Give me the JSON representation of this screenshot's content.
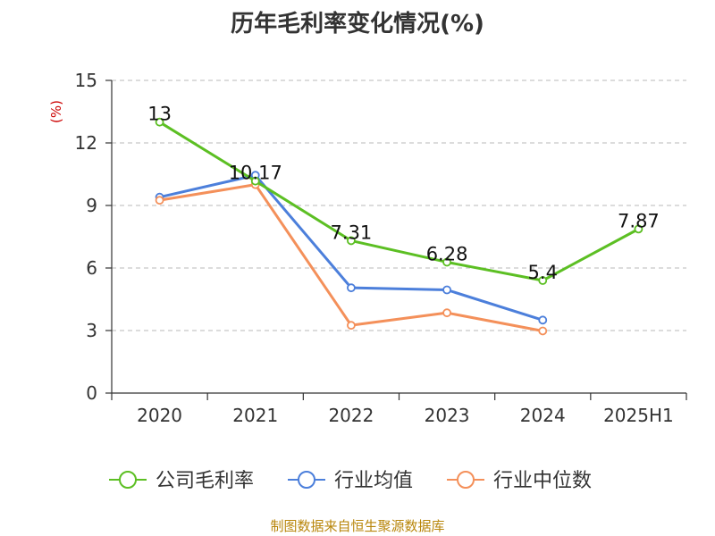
{
  "title": "历年毛利率变化情况(%)",
  "source": "制图数据来自恒生聚源数据库",
  "colors": {
    "company": "#5cbf23",
    "industry_avg": "#4c7fdb",
    "industry_median": "#f4905a",
    "unit_label": "#cc0000"
  },
  "chart_data": {
    "type": "line",
    "title": "历年毛利率变化情况(%)",
    "ylabel": "(%)",
    "ylim": [
      0,
      15
    ],
    "y_ticks": [
      0,
      3,
      6,
      9,
      12,
      15
    ],
    "grid": true,
    "legend_position": "bottom",
    "categories": [
      "2020",
      "2021",
      "2022",
      "2023",
      "2024",
      "2025H1"
    ],
    "series": [
      {
        "name": "公司毛利率",
        "color": "#5cbf23",
        "values": [
          13,
          10.17,
          7.31,
          6.28,
          5.4,
          7.87
        ],
        "labels": [
          "13",
          "10.17",
          "7.31",
          "6.28",
          "5.4",
          "7.87"
        ]
      },
      {
        "name": "行业均值",
        "color": "#4c7fdb",
        "values": [
          9.4,
          10.45,
          5.05,
          4.95,
          3.5,
          null
        ]
      },
      {
        "name": "行业中位数",
        "color": "#f4905a",
        "values": [
          9.25,
          10.0,
          3.25,
          3.85,
          2.98,
          null
        ]
      }
    ]
  }
}
